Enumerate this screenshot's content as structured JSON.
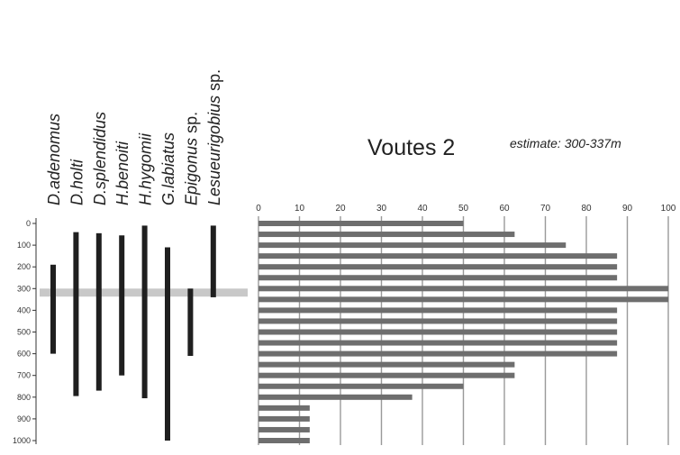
{
  "chart_data": [
    {
      "type": "range-bar",
      "title": "Voutes 2",
      "subtitle": "estimate: 300-337m",
      "y_axis": {
        "ticks": [
          "0",
          "100",
          "200",
          "300",
          "400",
          "500",
          "600",
          "700",
          "800",
          "900",
          "1000"
        ],
        "ylim": [
          0,
          1000
        ],
        "inverted": true
      },
      "estimate_band": [
        300,
        337
      ],
      "species": [
        {
          "italic": "D.adenomus",
          "suffix": "",
          "min": 190,
          "max": 600
        },
        {
          "italic": "D.holti",
          "suffix": "",
          "min": 40,
          "max": 795
        },
        {
          "italic": "D.splendidus",
          "suffix": "",
          "min": 45,
          "max": 770
        },
        {
          "italic": "H.benoiti",
          "suffix": "",
          "min": 55,
          "max": 700
        },
        {
          "italic": "H.hygomii",
          "suffix": "",
          "min": 10,
          "max": 805
        },
        {
          "italic": "G.labiatus",
          "suffix": "",
          "min": 110,
          "max": 1000
        },
        {
          "italic": "Epigonus",
          "suffix": " sp.",
          "min": 300,
          "max": 610
        },
        {
          "italic": "Lesueurigobius",
          "suffix": " sp.",
          "min": 10,
          "max": 340
        }
      ]
    },
    {
      "type": "bar",
      "orientation": "horizontal",
      "x_ticks": [
        "0",
        "10",
        "20",
        "30",
        "40",
        "50",
        "60",
        "70",
        "80",
        "90",
        "100"
      ],
      "xlim": [
        0,
        100
      ],
      "grid": true,
      "depths": [
        0,
        50,
        100,
        150,
        200,
        250,
        300,
        350,
        400,
        450,
        500,
        550,
        600,
        650,
        700,
        750,
        800,
        850,
        900,
        950,
        1000
      ],
      "values": [
        50,
        62.5,
        75,
        87.5,
        87.5,
        87.5,
        100,
        100,
        87.5,
        87.5,
        87.5,
        87.5,
        87.5,
        62.5,
        62.5,
        50,
        37.5,
        12.5,
        12.5,
        12.5,
        12.5
      ]
    }
  ]
}
